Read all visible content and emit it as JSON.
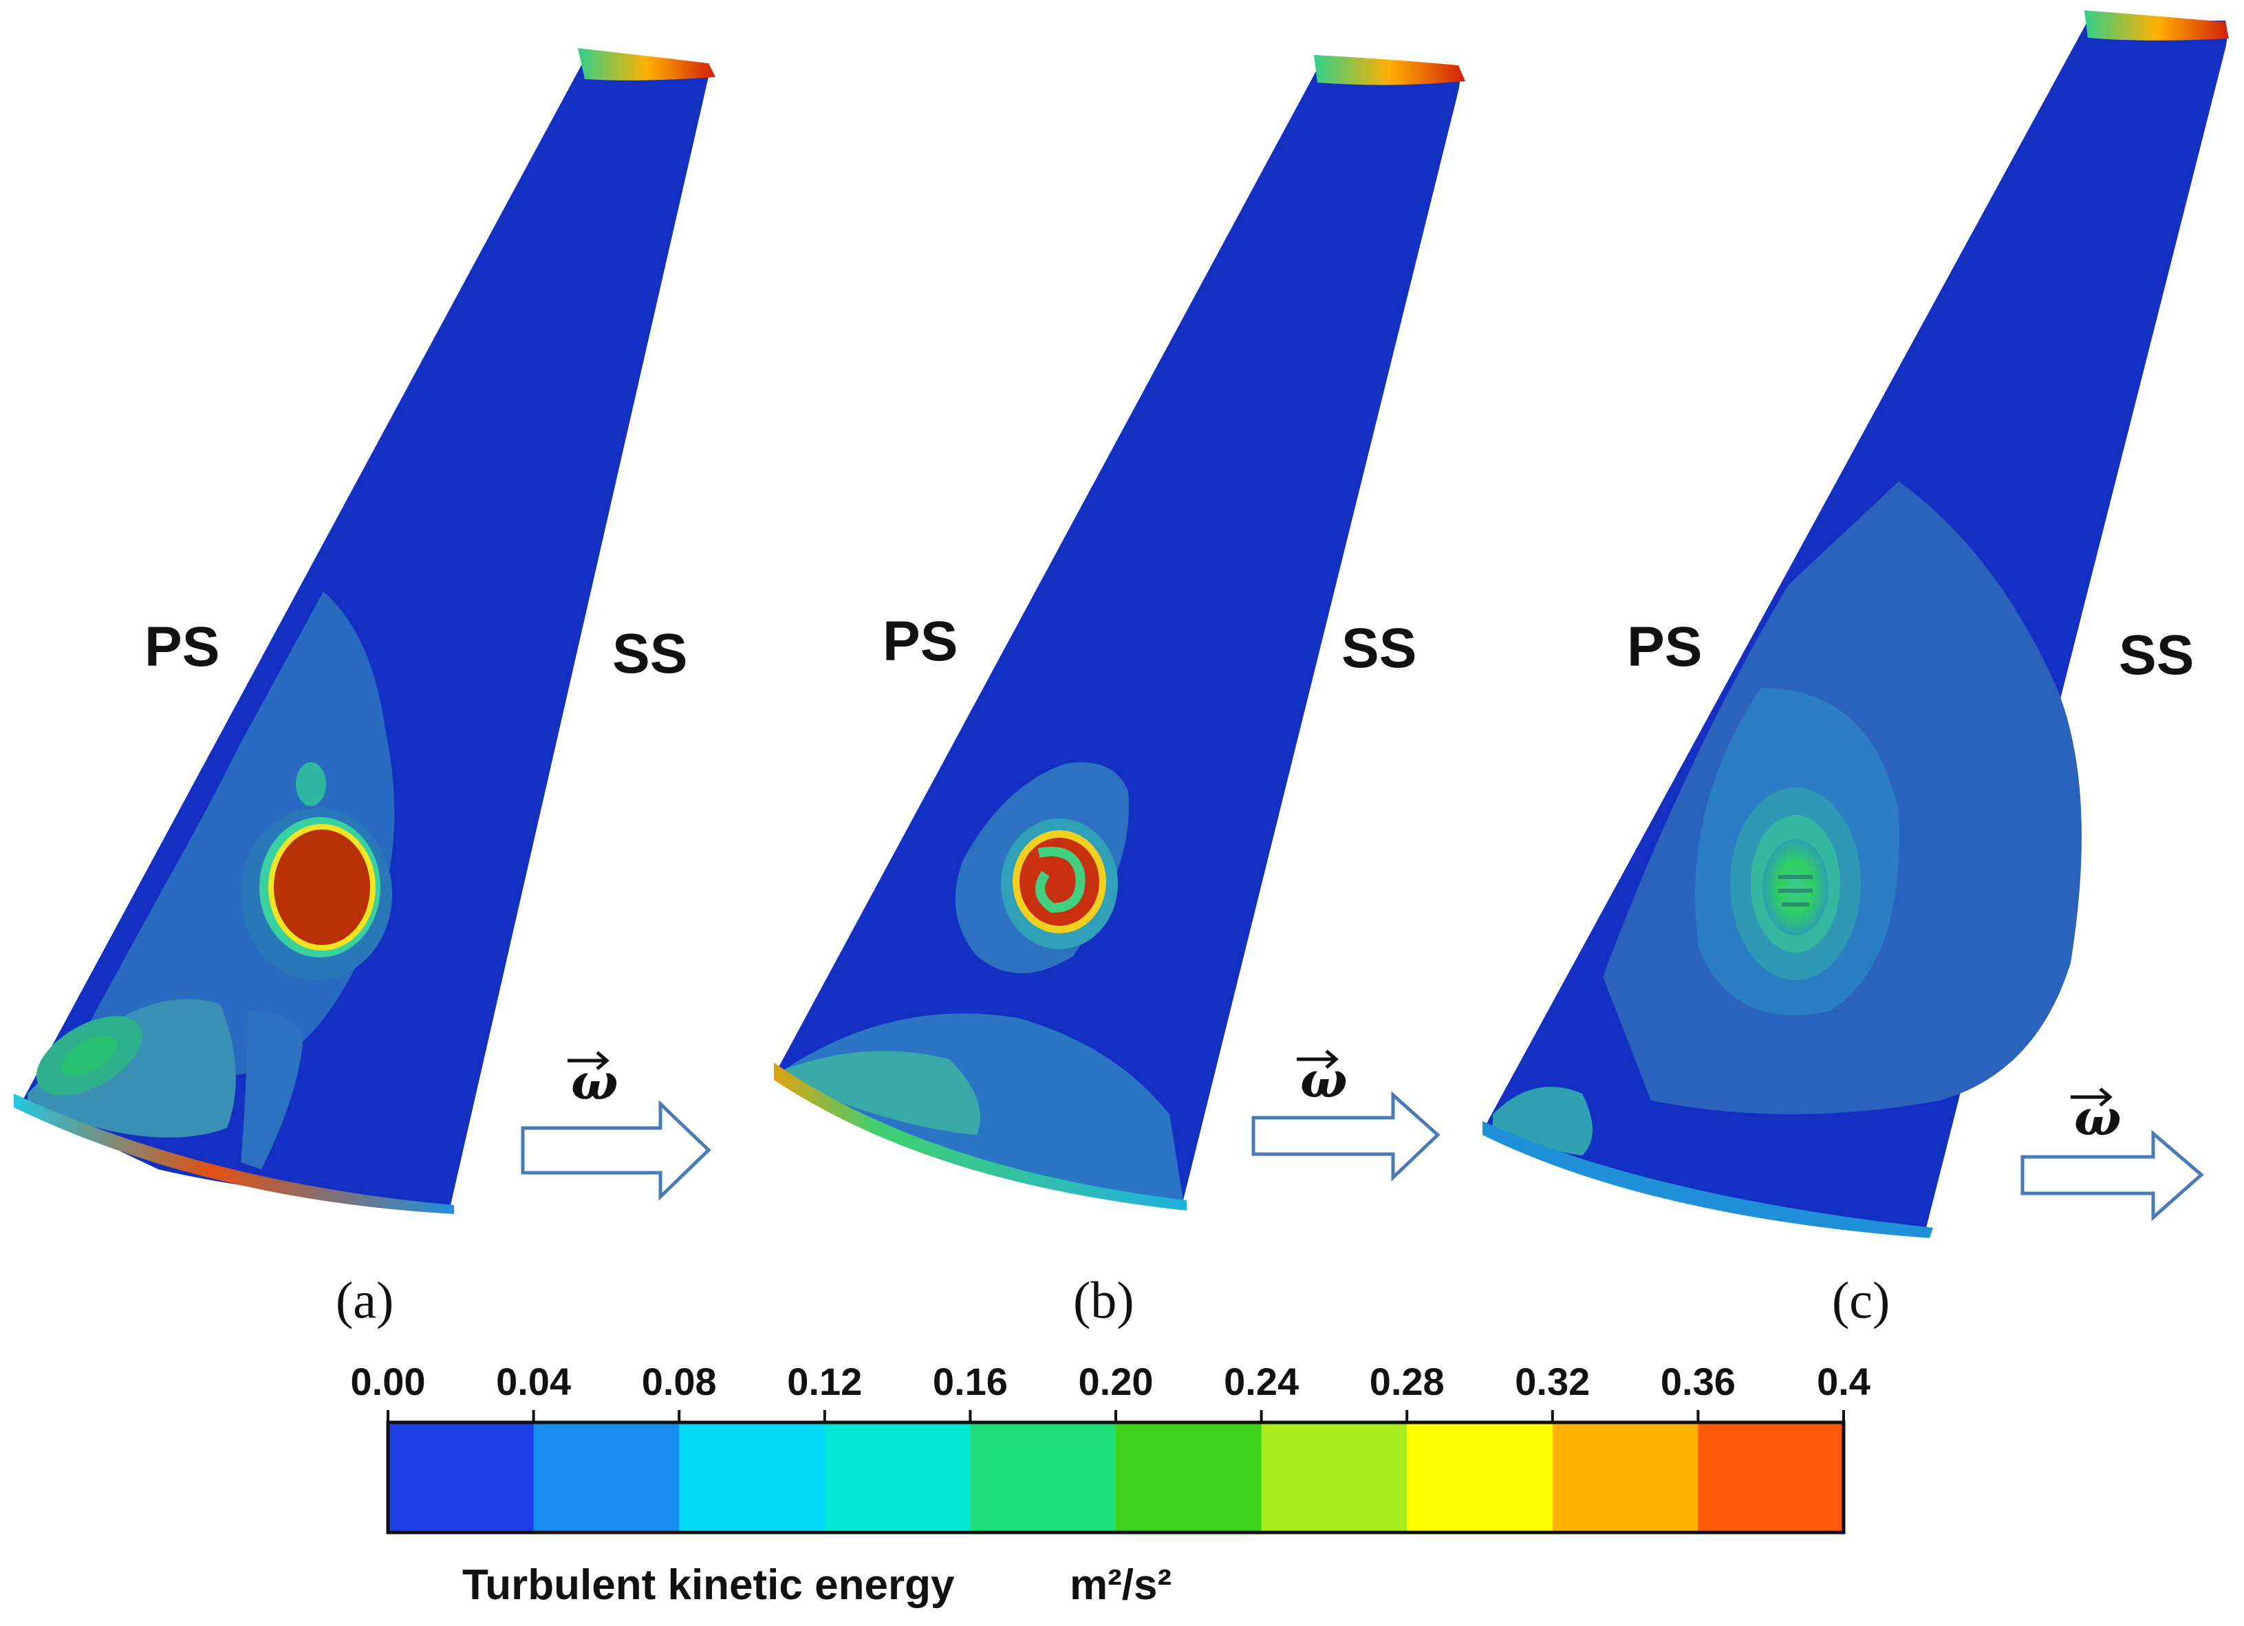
{
  "panels": [
    {
      "label": "(a)",
      "left_side": "PS",
      "right_side": "SS",
      "rotation_symbol": "ω"
    },
    {
      "label": "(b)",
      "left_side": "PS",
      "right_side": "SS",
      "rotation_symbol": "ω"
    },
    {
      "label": "(c)",
      "left_side": "PS",
      "right_side": "SS",
      "rotation_symbol": "ω"
    }
  ],
  "colorbar": {
    "title": "Turbulent kinetic energy",
    "unit": "m²/s²",
    "tick_labels": [
      "0.00",
      "0.04",
      "0.08",
      "0.12",
      "0.16",
      "0.20",
      "0.24",
      "0.28",
      "0.32",
      "0.36",
      "0.4"
    ],
    "min": 0.0,
    "max": 0.4,
    "bands": [
      {
        "from": 0.0,
        "to": 0.04,
        "color": "#1E3FE8"
      },
      {
        "from": 0.04,
        "to": 0.08,
        "color": "#1A8EF0"
      },
      {
        "from": 0.08,
        "to": 0.12,
        "color": "#00D8F8"
      },
      {
        "from": 0.12,
        "to": 0.16,
        "color": "#00E8D2"
      },
      {
        "from": 0.16,
        "to": 0.2,
        "color": "#1FE07A"
      },
      {
        "from": 0.2,
        "to": 0.24,
        "color": "#3ED21C"
      },
      {
        "from": 0.24,
        "to": 0.28,
        "color": "#A8EC20"
      },
      {
        "from": 0.28,
        "to": 0.32,
        "color": "#FFFF00"
      },
      {
        "from": 0.32,
        "to": 0.36,
        "color": "#FFB200"
      },
      {
        "from": 0.36,
        "to": 0.4,
        "color": "#FF5A0A"
      }
    ]
  },
  "colors": {
    "blade_base": "#1330C2",
    "low_contour": "#2C7AC4",
    "mid_contour": "#3FB58E",
    "high_core": "#B83006",
    "arrow_stroke": "#4A7AB8"
  }
}
